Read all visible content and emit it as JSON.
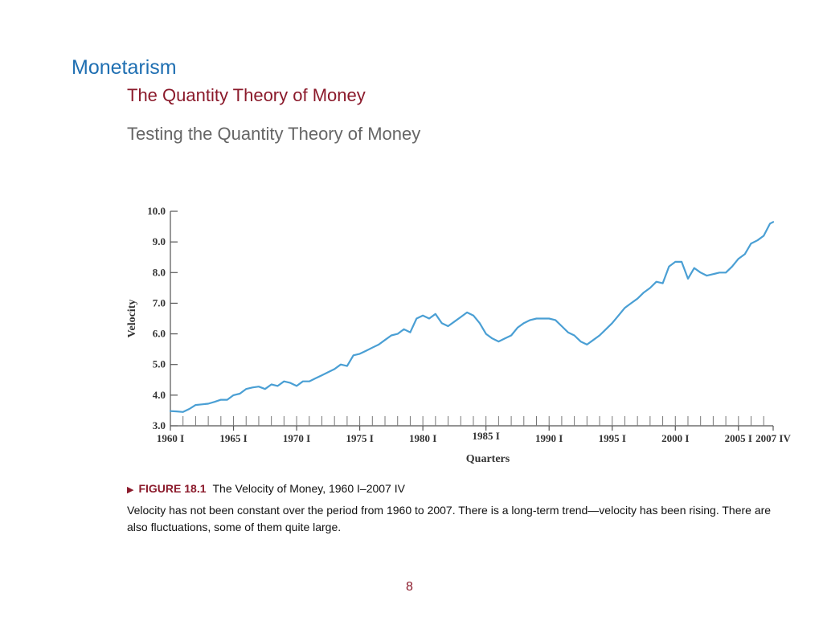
{
  "slide": {
    "title": "Monetarism",
    "subtitle": "The Quantity Theory of Money",
    "section": "Testing the Quantity Theory of Money",
    "page_number": "8"
  },
  "caption": {
    "figure_label": "FIGURE 18.1",
    "figure_title": "The Velocity of Money, 1960 I–2007 IV",
    "body": "Velocity has not been constant over the period from 1960 to 2007. There is a long-term trend—velocity has been rising. There are also fluctuations, some of them quite large."
  },
  "colors": {
    "title": "#1f6fb2",
    "subtitle": "#8b1a2b",
    "line": "#4a9fd4"
  },
  "chart_data": {
    "type": "line",
    "title": "",
    "xlabel": "Quarters",
    "ylabel": "Velocity",
    "ylim": [
      3.0,
      10.0
    ],
    "yticks": [
      "3.0",
      "4.0",
      "5.0",
      "6.0",
      "7.0",
      "8.0",
      "9.0",
      "10.0"
    ],
    "xticks": [
      {
        "label": "1960 I",
        "year": 1960
      },
      {
        "label": "1965 I",
        "year": 1965
      },
      {
        "label": "1970 I",
        "year": 1970
      },
      {
        "label": "1975 I",
        "year": 1975
      },
      {
        "label": "1980 I",
        "year": 1980
      },
      {
        "label": "1985 I",
        "year": 1985
      },
      {
        "label": "1990 I",
        "year": 1990
      },
      {
        "label": "1995 I",
        "year": 1995
      },
      {
        "label": "2000 I",
        "year": 2000
      },
      {
        "label": "2005 I",
        "year": 2005
      },
      {
        "label": "2007 IV",
        "year": 2007.75
      }
    ],
    "x_range": [
      1960,
      2007.75
    ],
    "grid": false,
    "series": [
      {
        "x": [
          1960.0,
          1960.5,
          1961.0,
          1961.5,
          1962.0,
          1962.5,
          1963.0,
          1963.5,
          1964.0,
          1964.5,
          1965.0,
          1965.5,
          1966.0,
          1966.5,
          1967.0,
          1967.5,
          1968.0,
          1968.5,
          1969.0,
          1969.5,
          1970.0,
          1970.5,
          1971.0,
          1971.5,
          1972.0,
          1972.5,
          1973.0,
          1973.5,
          1974.0,
          1974.5,
          1975.0,
          1975.5,
          1976.0,
          1976.5,
          1977.0,
          1977.5,
          1978.0,
          1978.5,
          1979.0,
          1979.5,
          1980.0,
          1980.5,
          1981.0,
          1981.5,
          1982.0,
          1982.5,
          1983.0,
          1983.5,
          1984.0,
          1984.5,
          1985.0,
          1985.5,
          1986.0,
          1986.5,
          1987.0,
          1987.5,
          1988.0,
          1988.5,
          1989.0,
          1989.5,
          1990.0,
          1990.5,
          1991.0,
          1991.5,
          1992.0,
          1992.5,
          1993.0,
          1993.5,
          1994.0,
          1994.5,
          1995.0,
          1995.5,
          1996.0,
          1996.5,
          1997.0,
          1997.5,
          1998.0,
          1998.5,
          1999.0,
          1999.5,
          2000.0,
          2000.5,
          2001.0,
          2001.5,
          2002.0,
          2002.5,
          2003.0,
          2003.5,
          2004.0,
          2004.5,
          2005.0,
          2005.5,
          2006.0,
          2006.5,
          2007.0,
          2007.5,
          2007.75
        ],
        "values": [
          3.48,
          3.47,
          3.45,
          3.55,
          3.68,
          3.7,
          3.72,
          3.78,
          3.85,
          3.85,
          4.0,
          4.05,
          4.2,
          4.25,
          4.28,
          4.2,
          4.35,
          4.3,
          4.45,
          4.4,
          4.3,
          4.45,
          4.45,
          4.55,
          4.65,
          4.75,
          4.85,
          5.0,
          4.95,
          5.3,
          5.35,
          5.45,
          5.55,
          5.65,
          5.8,
          5.95,
          6.0,
          6.15,
          6.05,
          6.5,
          6.6,
          6.5,
          6.65,
          6.35,
          6.25,
          6.4,
          6.55,
          6.7,
          6.6,
          6.35,
          6.0,
          5.85,
          5.75,
          5.85,
          5.95,
          6.2,
          6.35,
          6.45,
          6.5,
          6.5,
          6.5,
          6.45,
          6.25,
          6.05,
          5.95,
          5.75,
          5.65,
          5.8,
          5.95,
          6.15,
          6.35,
          6.6,
          6.85,
          7.0,
          7.15,
          7.35,
          7.5,
          7.7,
          7.65,
          8.2,
          8.35,
          8.35,
          7.8,
          8.15,
          8.0,
          7.9,
          7.95,
          8.0,
          8.0,
          8.2,
          8.45,
          8.6,
          8.95,
          9.05,
          9.2,
          9.6,
          9.65
        ]
      }
    ]
  }
}
